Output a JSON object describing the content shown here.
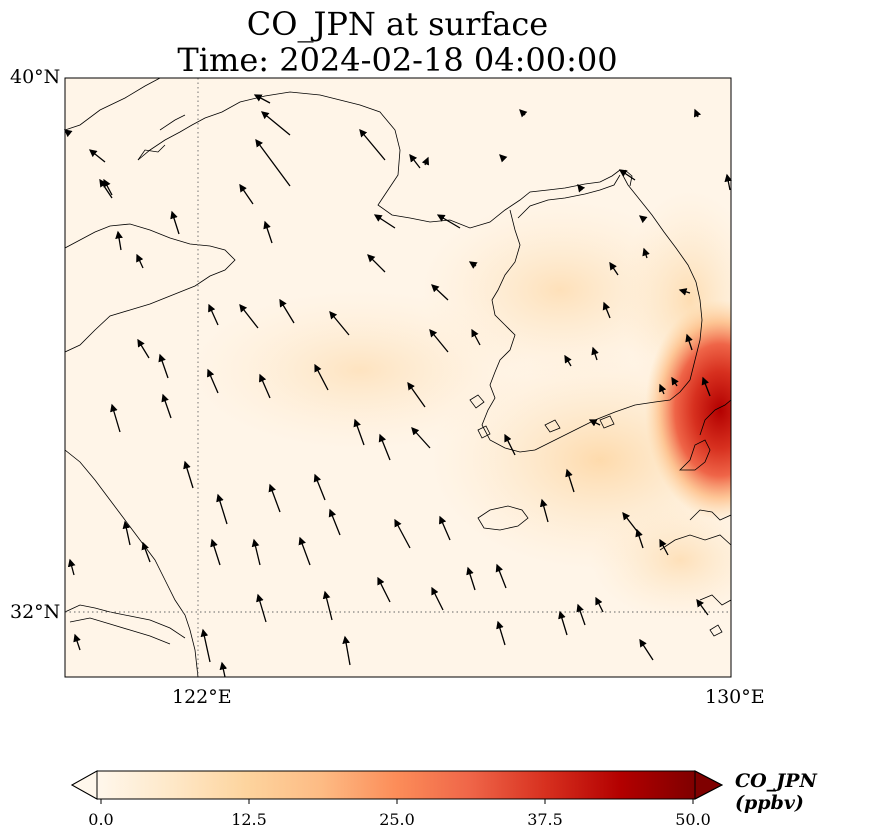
{
  "title": {
    "line1": "CO_JPN at surface",
    "line2": "Time: 2024-02-18 04:00:00"
  },
  "map": {
    "extent": {
      "lon_min": 118,
      "lon_max": 130,
      "lat_min": 30.8,
      "lat_max": 40
    },
    "gridlines": {
      "lon": [
        122,
        130
      ],
      "lat": [
        32,
        40
      ],
      "style": "dotted"
    },
    "lon_labels": [
      "122°E",
      "130°E"
    ],
    "lat_labels": [
      "40°N",
      "32°N"
    ],
    "field_description": "low CO (pale cream) over most of the Yellow Sea and Korea, higher values (red) near the southeast corner off Kyushu/eastern Korea",
    "wind_vectors": "mostly northward / north-northwest flow over the sea"
  },
  "colorbar": {
    "label": "CO_JPN (ppbv)",
    "ticks": [
      "0.0",
      "12.5",
      "25.0",
      "37.5",
      "50.0"
    ],
    "range": [
      0,
      50
    ],
    "colormap": "OrRd",
    "colors": [
      "#fff7ec",
      "#fee8c8",
      "#fdd49e",
      "#fdbb84",
      "#fc8d59",
      "#ef6548",
      "#d7301f",
      "#b30000",
      "#7f0000"
    ]
  }
}
